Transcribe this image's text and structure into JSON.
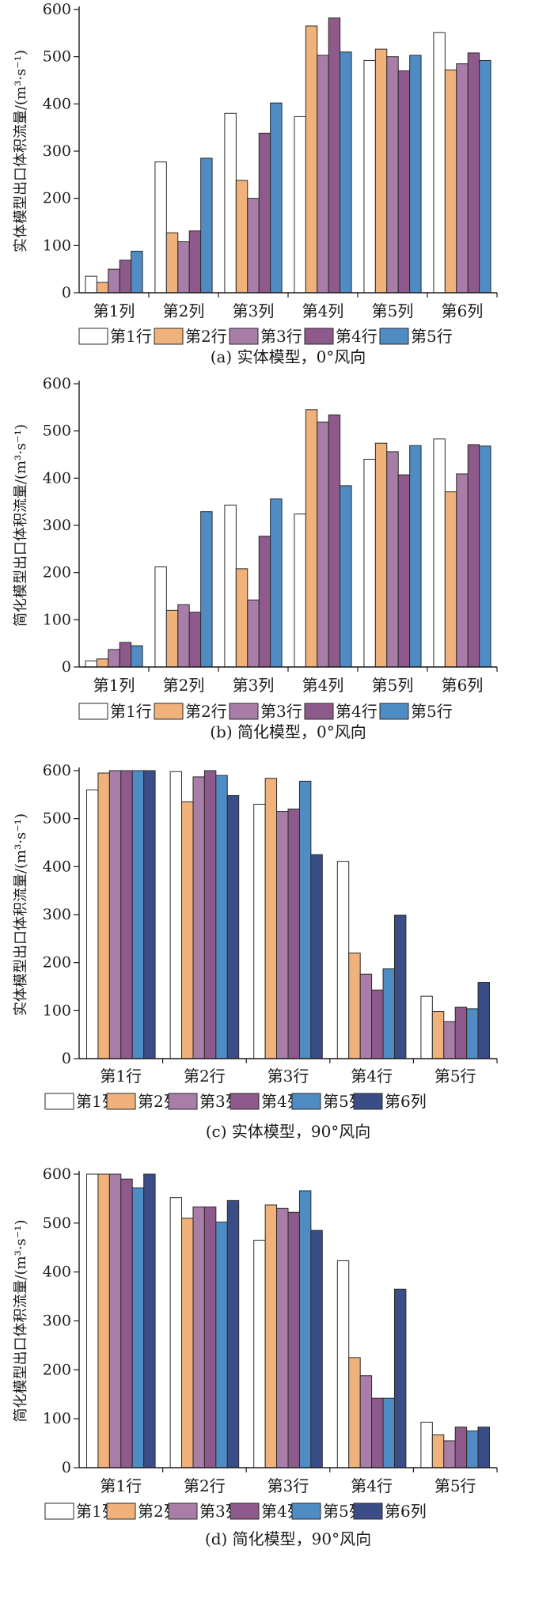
{
  "chart_data": [
    {
      "type": "bar",
      "ylabel": "实体模型出口体积流量/(m³·s⁻¹)",
      "caption": "(a) 实体模型，0°风向",
      "ylim": [
        0,
        600
      ],
      "yticks": [
        0,
        100,
        200,
        300,
        400,
        500,
        600
      ],
      "categories": [
        "第1列",
        "第2列",
        "第3列",
        "第4列",
        "第5列",
        "第6列"
      ],
      "series": [
        {
          "name": "第1行",
          "color": "#ffffff",
          "values": [
            35,
            277,
            380,
            373,
            492,
            551
          ]
        },
        {
          "name": "第2行",
          "color": "#f0b27a",
          "values": [
            22,
            127,
            238,
            565,
            516,
            472
          ]
        },
        {
          "name": "第3行",
          "color": "#a87ea8",
          "values": [
            50,
            108,
            200,
            503,
            500,
            485
          ]
        },
        {
          "name": "第4行",
          "color": "#8e5a8c",
          "values": [
            69,
            131,
            338,
            582,
            470,
            508
          ]
        },
        {
          "name": "第5行",
          "color": "#4f8cc4",
          "values": [
            88,
            285,
            402,
            510,
            503,
            492
          ]
        }
      ],
      "legend_position": "bottom"
    },
    {
      "type": "bar",
      "ylabel": "简化模型出口体积流量/(m³·s⁻¹)",
      "caption": "(b) 简化模型，0°风向",
      "ylim": [
        0,
        600
      ],
      "yticks": [
        0,
        100,
        200,
        300,
        400,
        500,
        600
      ],
      "categories": [
        "第1列",
        "第2列",
        "第3列",
        "第4列",
        "第5列",
        "第6列"
      ],
      "series": [
        {
          "name": "第1行",
          "color": "#ffffff",
          "values": [
            13,
            212,
            343,
            324,
            440,
            483
          ]
        },
        {
          "name": "第2行",
          "color": "#f0b27a",
          "values": [
            17,
            120,
            208,
            545,
            474,
            371
          ]
        },
        {
          "name": "第3行",
          "color": "#a87ea8",
          "values": [
            37,
            132,
            142,
            519,
            456,
            409
          ]
        },
        {
          "name": "第4行",
          "color": "#8e5a8c",
          "values": [
            52,
            116,
            277,
            534,
            407,
            471
          ]
        },
        {
          "name": "第5行",
          "color": "#4f8cc4",
          "values": [
            45,
            329,
            356,
            384,
            469,
            468
          ]
        }
      ],
      "legend_position": "bottom"
    },
    {
      "type": "bar",
      "ylabel": "实体模型出口体积流量/(m³·s⁻¹)",
      "caption": "(c) 实体模型，90°风向",
      "ylim": [
        0,
        600
      ],
      "yticks": [
        0,
        100,
        200,
        300,
        400,
        500,
        600
      ],
      "categories": [
        "第1行",
        "第2行",
        "第3行",
        "第4行",
        "第5行"
      ],
      "series": [
        {
          "name": "第1列",
          "color": "#ffffff",
          "values": [
            560,
            598,
            530,
            411,
            130
          ]
        },
        {
          "name": "第2列",
          "color": "#f0b27a",
          "values": [
            595,
            535,
            584,
            220,
            98
          ]
        },
        {
          "name": "第3列",
          "color": "#a87ea8",
          "values": [
            600,
            587,
            515,
            176,
            77
          ]
        },
        {
          "name": "第4列",
          "color": "#8e5a8c",
          "values": [
            600,
            600,
            520,
            143,
            107
          ]
        },
        {
          "name": "第5列",
          "color": "#4f8cc4",
          "values": [
            600,
            590,
            578,
            187,
            104
          ]
        },
        {
          "name": "第6列",
          "color": "#3b4d86",
          "values": [
            600,
            548,
            425,
            299,
            159
          ]
        }
      ],
      "legend_position": "bottom"
    },
    {
      "type": "bar",
      "ylabel": "简化模型出口体积流量/(m³·s⁻¹)",
      "caption": "(d) 简化模型，90°风向",
      "ylim": [
        0,
        600
      ],
      "yticks": [
        0,
        100,
        200,
        300,
        400,
        500,
        600
      ],
      "categories": [
        "第1行",
        "第2行",
        "第3行",
        "第4行",
        "第5行"
      ],
      "series": [
        {
          "name": "第1列",
          "color": "#ffffff",
          "values": [
            600,
            552,
            465,
            423,
            93
          ]
        },
        {
          "name": "第2列",
          "color": "#f0b27a",
          "values": [
            600,
            510,
            537,
            225,
            67
          ]
        },
        {
          "name": "第3列",
          "color": "#a87ea8",
          "values": [
            600,
            533,
            530,
            188,
            55
          ]
        },
        {
          "name": "第4列",
          "color": "#8e5a8c",
          "values": [
            590,
            533,
            522,
            142,
            83
          ]
        },
        {
          "name": "第5列",
          "color": "#4f8cc4",
          "values": [
            572,
            502,
            566,
            142,
            75
          ]
        },
        {
          "name": "第6列",
          "color": "#3b4d86",
          "values": [
            600,
            546,
            485,
            365,
            83
          ]
        }
      ],
      "legend_position": "bottom"
    }
  ]
}
